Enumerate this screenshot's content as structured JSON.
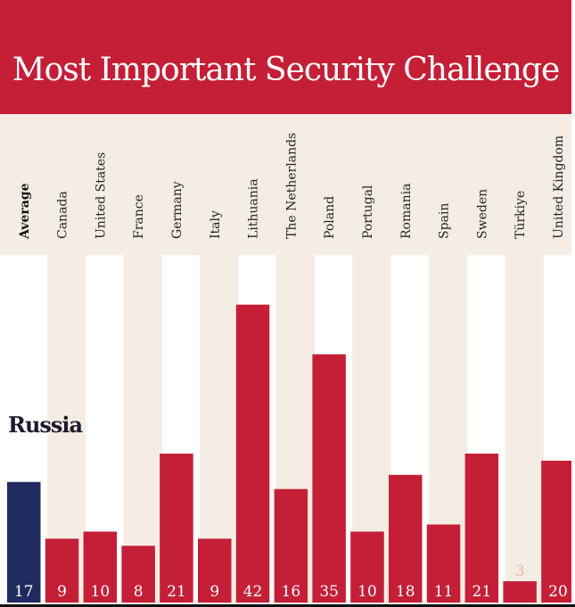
{
  "chart_data": {
    "type": "bar",
    "title": "Most Important Security Challenge",
    "series_label": "Russia",
    "categories": [
      "Average",
      "Canada",
      "United States",
      "France",
      "Germany",
      "Italy",
      "Lithuania",
      "The Netherlands",
      "Poland",
      "Portugal",
      "Romania",
      "Spain",
      "Sweden",
      "Türkiye",
      "United Kingdom"
    ],
    "values": [
      17,
      9,
      10,
      8,
      21,
      9,
      42,
      16,
      35,
      10,
      18,
      11,
      21,
      3,
      20
    ],
    "ylim": [
      0,
      48
    ],
    "grid": false,
    "legend": "none",
    "colors": {
      "header": "#c41f37",
      "bar": "#c41f37",
      "average_bar": "#1f2b5e",
      "band": "#f5ede4",
      "value_text": "#ffffff",
      "value_text_small": "#e8b9a8"
    }
  }
}
